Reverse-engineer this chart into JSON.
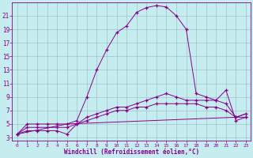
{
  "background_color": "#c5edf0",
  "line_color": "#880088",
  "grid_color": "#9ab8bc",
  "xlabel": "Windchill (Refroidissement éolien,°C)",
  "xlim": [
    -0.5,
    23.5
  ],
  "ylim": [
    2.5,
    23.0
  ],
  "xticks": [
    0,
    1,
    2,
    3,
    4,
    5,
    6,
    7,
    8,
    9,
    10,
    11,
    12,
    13,
    14,
    15,
    16,
    17,
    18,
    19,
    20,
    21,
    22,
    23
  ],
  "yticks": [
    3,
    5,
    7,
    9,
    11,
    13,
    15,
    17,
    19,
    21
  ],
  "curve1_x": [
    0,
    1,
    2,
    3,
    4,
    5,
    6,
    7,
    8,
    9,
    10,
    11,
    12,
    13,
    14,
    15,
    16,
    17,
    18,
    19,
    20,
    21,
    22,
    23
  ],
  "curve1_y": [
    3.5,
    5.0,
    5.0,
    5.0,
    5.0,
    5.0,
    5.5,
    9.0,
    13.0,
    16.0,
    18.5,
    19.5,
    21.5,
    22.2,
    22.5,
    22.3,
    21.0,
    19.0,
    9.5,
    9.0,
    8.5,
    10.0,
    5.5,
    6.0
  ],
  "curve2_x": [
    0,
    1,
    2,
    3,
    4,
    5,
    6,
    7,
    8,
    9,
    10,
    11,
    12,
    13,
    14,
    15,
    16,
    17,
    18,
    19,
    20,
    21,
    22,
    23
  ],
  "curve2_y": [
    3.5,
    4.5,
    4.5,
    4.5,
    4.5,
    4.5,
    5.0,
    6.0,
    6.5,
    7.0,
    7.5,
    7.5,
    8.0,
    8.5,
    9.0,
    9.5,
    9.0,
    8.5,
    8.5,
    8.5,
    8.5,
    8.0,
    6.0,
    6.0
  ],
  "curve3_x": [
    0,
    1,
    2,
    3,
    4,
    5,
    6,
    7,
    8,
    9,
    10,
    11,
    12,
    13,
    14,
    15,
    16,
    17,
    18,
    19,
    20,
    21,
    22,
    23
  ],
  "curve3_y": [
    3.5,
    4.0,
    4.0,
    4.0,
    4.0,
    3.5,
    5.0,
    5.5,
    6.0,
    6.5,
    7.0,
    7.0,
    7.5,
    7.5,
    8.0,
    8.0,
    8.0,
    8.0,
    8.0,
    7.5,
    7.5,
    7.0,
    6.0,
    6.5
  ],
  "curve4_x": [
    0,
    5,
    22,
    23
  ],
  "curve4_y": [
    3.5,
    5.0,
    6.0,
    6.5
  ]
}
